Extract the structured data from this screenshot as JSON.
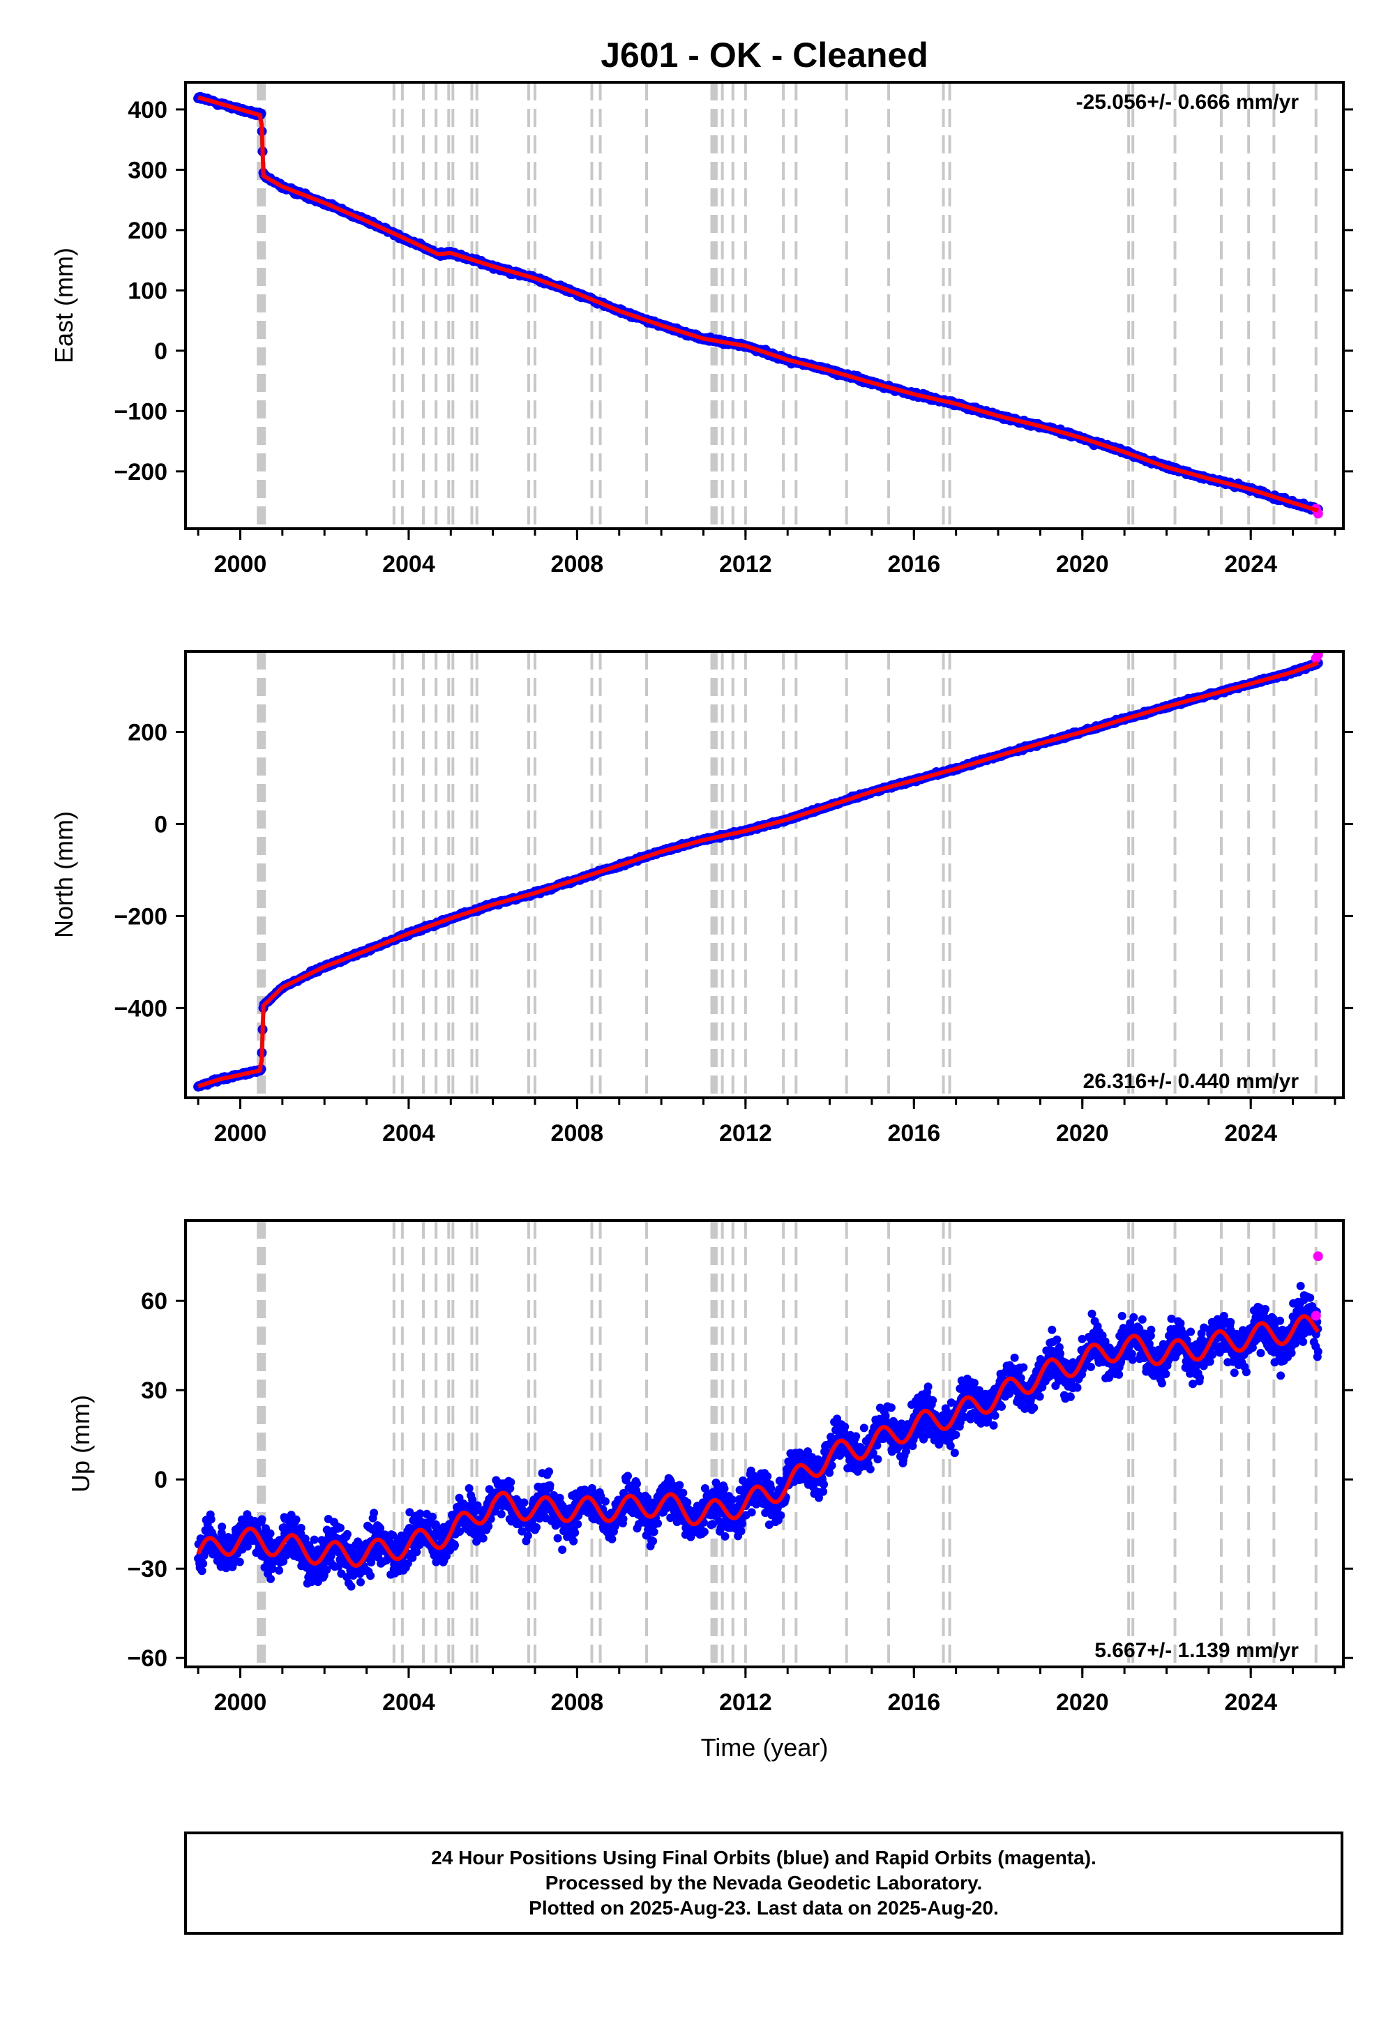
{
  "title": "J601  - OK - Cleaned",
  "colors": {
    "final_orbits": "#0000ff",
    "rapid_orbits": "#ff00ff",
    "model": "#ff0000",
    "event_lines": "#c8c8c8",
    "frame": "#000000"
  },
  "footer": {
    "line1": "24 Hour Positions Using Final Orbits (blue) and Rapid Orbits (magenta).",
    "line2": "Processed by the Nevada Geodetic Laboratory.",
    "line3": "Plotted on 2025-Aug-23. Last data on 2025-Aug-20."
  },
  "chart_data": [
    {
      "type": "scatter",
      "id": "east",
      "ylabel": "East (mm)",
      "xlabel": "",
      "xlim": [
        1998.7,
        2026.2
      ],
      "ylim": [
        -295,
        445
      ],
      "yticks": [
        400,
        300,
        200,
        100,
        0,
        -100,
        -200
      ],
      "ytick_labels": [
        "400",
        "300",
        "200",
        "100",
        "0",
        "−100",
        "−200"
      ],
      "xticks": [
        2000,
        2004,
        2008,
        2012,
        2016,
        2020,
        2024
      ],
      "xtick_labels": [
        "2000",
        "2004",
        "2008",
        "2012",
        "2016",
        "2020",
        "2024"
      ],
      "rate_label": "-25.056+/- 0.666 mm/yr",
      "rate_position": "top-right",
      "series": [
        {
          "kind": "final-orbits-points",
          "x": [
            1999.0,
            1999.5,
            2000.0,
            2000.5,
            2000.55,
            2001.0,
            2002.0,
            2003.0,
            2004.0,
            2004.7,
            2005.0,
            2006.0,
            2007.0,
            2008.0,
            2009.0,
            2010.0,
            2011.0,
            2012.0,
            2013.0,
            2014.0,
            2015.0,
            2016.0,
            2017.0,
            2018.0,
            2019.0,
            2020.0,
            2021.0,
            2022.0,
            2023.0,
            2024.0,
            2025.0,
            2025.6
          ],
          "y": [
            420,
            410,
            400,
            390,
            290,
            272,
            245,
            215,
            183,
            160,
            162,
            140,
            120,
            95,
            66,
            42,
            20,
            8,
            -15,
            -33,
            -53,
            -72,
            -88,
            -108,
            -125,
            -145,
            -168,
            -193,
            -212,
            -230,
            -252,
            -265
          ]
        },
        {
          "kind": "rapid-orbits-points",
          "x": [
            2025.55,
            2025.6
          ],
          "y": [
            -262,
            -270
          ]
        }
      ]
    },
    {
      "type": "scatter",
      "id": "north",
      "ylabel": "North (mm)",
      "xlabel": "",
      "xlim": [
        1998.7,
        2026.2
      ],
      "ylim": [
        -595,
        375
      ],
      "yticks": [
        200,
        0,
        -200,
        -400
      ],
      "ytick_labels": [
        "200",
        "0",
        "−200",
        "−400"
      ],
      "xticks": [
        2000,
        2004,
        2008,
        2012,
        2016,
        2020,
        2024
      ],
      "xtick_labels": [
        "2000",
        "2004",
        "2008",
        "2012",
        "2016",
        "2020",
        "2024"
      ],
      "rate_label": "26.316+/- 0.440 mm/yr",
      "rate_position": "bottom-right",
      "series": [
        {
          "kind": "final-orbits-points",
          "x": [
            1999.0,
            1999.5,
            2000.0,
            2000.5,
            2000.55,
            2001.0,
            2002.0,
            2003.0,
            2004.0,
            2005.0,
            2006.0,
            2007.0,
            2008.0,
            2009.0,
            2010.0,
            2011.0,
            2012.0,
            2013.0,
            2014.0,
            2015.0,
            2016.0,
            2017.0,
            2018.0,
            2019.0,
            2020.0,
            2021.0,
            2022.0,
            2023.0,
            2024.0,
            2025.0,
            2025.6
          ],
          "y": [
            -570,
            -555,
            -545,
            -535,
            -395,
            -355,
            -310,
            -275,
            -238,
            -205,
            -175,
            -150,
            -120,
            -90,
            -60,
            -35,
            -15,
            10,
            40,
            70,
            95,
            120,
            148,
            175,
            200,
            228,
            255,
            280,
            305,
            330,
            350
          ]
        },
        {
          "kind": "rapid-orbits-points",
          "x": [
            2025.55,
            2025.6
          ],
          "y": [
            360,
            368
          ]
        }
      ]
    },
    {
      "type": "scatter",
      "id": "up",
      "ylabel": "Up (mm)",
      "xlabel": "Time (year)",
      "xlim": [
        1998.7,
        2026.2
      ],
      "ylim": [
        -63,
        87
      ],
      "yticks": [
        60,
        30,
        0,
        -30,
        -60
      ],
      "ytick_labels": [
        "60",
        "30",
        "0",
        "−30",
        "−60"
      ],
      "xticks": [
        2000,
        2004,
        2008,
        2012,
        2016,
        2020,
        2024
      ],
      "xtick_labels": [
        "2000",
        "2004",
        "2008",
        "2012",
        "2016",
        "2020",
        "2024"
      ],
      "rate_label": "5.667+/- 1.139 mm/yr",
      "rate_position": "bottom-right",
      "series": [
        {
          "kind": "final-orbits-points",
          "x": [
            1999.0,
            2000.0,
            2001.0,
            2002.0,
            2003.0,
            2004.0,
            2005.0,
            2006.0,
            2007.0,
            2008.0,
            2009.0,
            2010.0,
            2011.0,
            2012.0,
            2013.0,
            2014.0,
            2015.0,
            2016.0,
            2017.0,
            2018.0,
            2019.0,
            2020.0,
            2021.0,
            2022.0,
            2023.0,
            2024.0,
            2025.0,
            2025.6
          ],
          "y": [
            -25,
            -20,
            -22,
            -25,
            -25,
            -22,
            -18,
            -8,
            -10,
            -10,
            -10,
            -8,
            -12,
            -8,
            -2,
            8,
            12,
            18,
            22,
            28,
            35,
            40,
            45,
            42,
            45,
            48,
            50,
            52
          ]
        },
        {
          "kind": "rapid-orbits-points",
          "x": [
            2025.55,
            2025.6
          ],
          "y": [
            55,
            75
          ]
        }
      ]
    }
  ],
  "event_lines": {
    "dashed_years": [
      2003.65,
      2003.85,
      2004.35,
      2004.65,
      2004.95,
      2005.05,
      2005.5,
      2005.62,
      2006.85,
      2007.0,
      2008.35,
      2008.55,
      2009.65,
      2011.2,
      2011.45,
      2011.7,
      2012.0,
      2012.9,
      2013.2,
      2014.4,
      2015.4,
      2016.7,
      2016.85,
      2021.1,
      2021.2,
      2022.2,
      2023.3,
      2023.95,
      2024.55,
      2025.55
    ],
    "thick_years": [
      2000.45,
      2000.55,
      2011.28
    ]
  }
}
